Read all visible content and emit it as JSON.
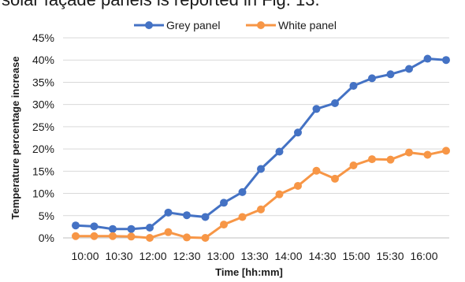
{
  "header_text": "solar façade panels is reported in Fig. 13.",
  "chart_data": {
    "type": "line",
    "xlabel": "Time [hh:mm]",
    "ylabel": "Temperature percentage increase",
    "ylim": [
      0,
      45
    ],
    "y_ticks": [
      "0%",
      "5%",
      "10%",
      "15%",
      "20%",
      "25%",
      "30%",
      "35%",
      "40%",
      "45%"
    ],
    "x_tick_labels": [
      "10:00",
      "10:30",
      "12:00",
      "12:30",
      "13:00",
      "13:30",
      "14:00",
      "14:30",
      "15:00",
      "15:30",
      "16:00"
    ],
    "grid": true,
    "legend_position": "top-center",
    "series": [
      {
        "name": "Grey panel",
        "color": "#4472C4",
        "values": [
          2.8,
          2.6,
          2.0,
          2.0,
          2.3,
          5.7,
          5.1,
          4.7,
          7.9,
          10.3,
          15.5,
          19.4,
          23.7,
          29.0,
          30.3,
          34.2,
          35.9,
          36.8,
          38.0,
          40.3,
          40.0
        ]
      },
      {
        "name": "White panel",
        "color": "#F79646",
        "values": [
          0.4,
          0.4,
          0.4,
          0.3,
          0.0,
          1.3,
          0.1,
          0.0,
          3.0,
          4.7,
          6.4,
          9.8,
          11.7,
          15.1,
          13.3,
          16.3,
          17.7,
          17.6,
          19.2,
          18.7,
          19.6
        ]
      }
    ]
  }
}
